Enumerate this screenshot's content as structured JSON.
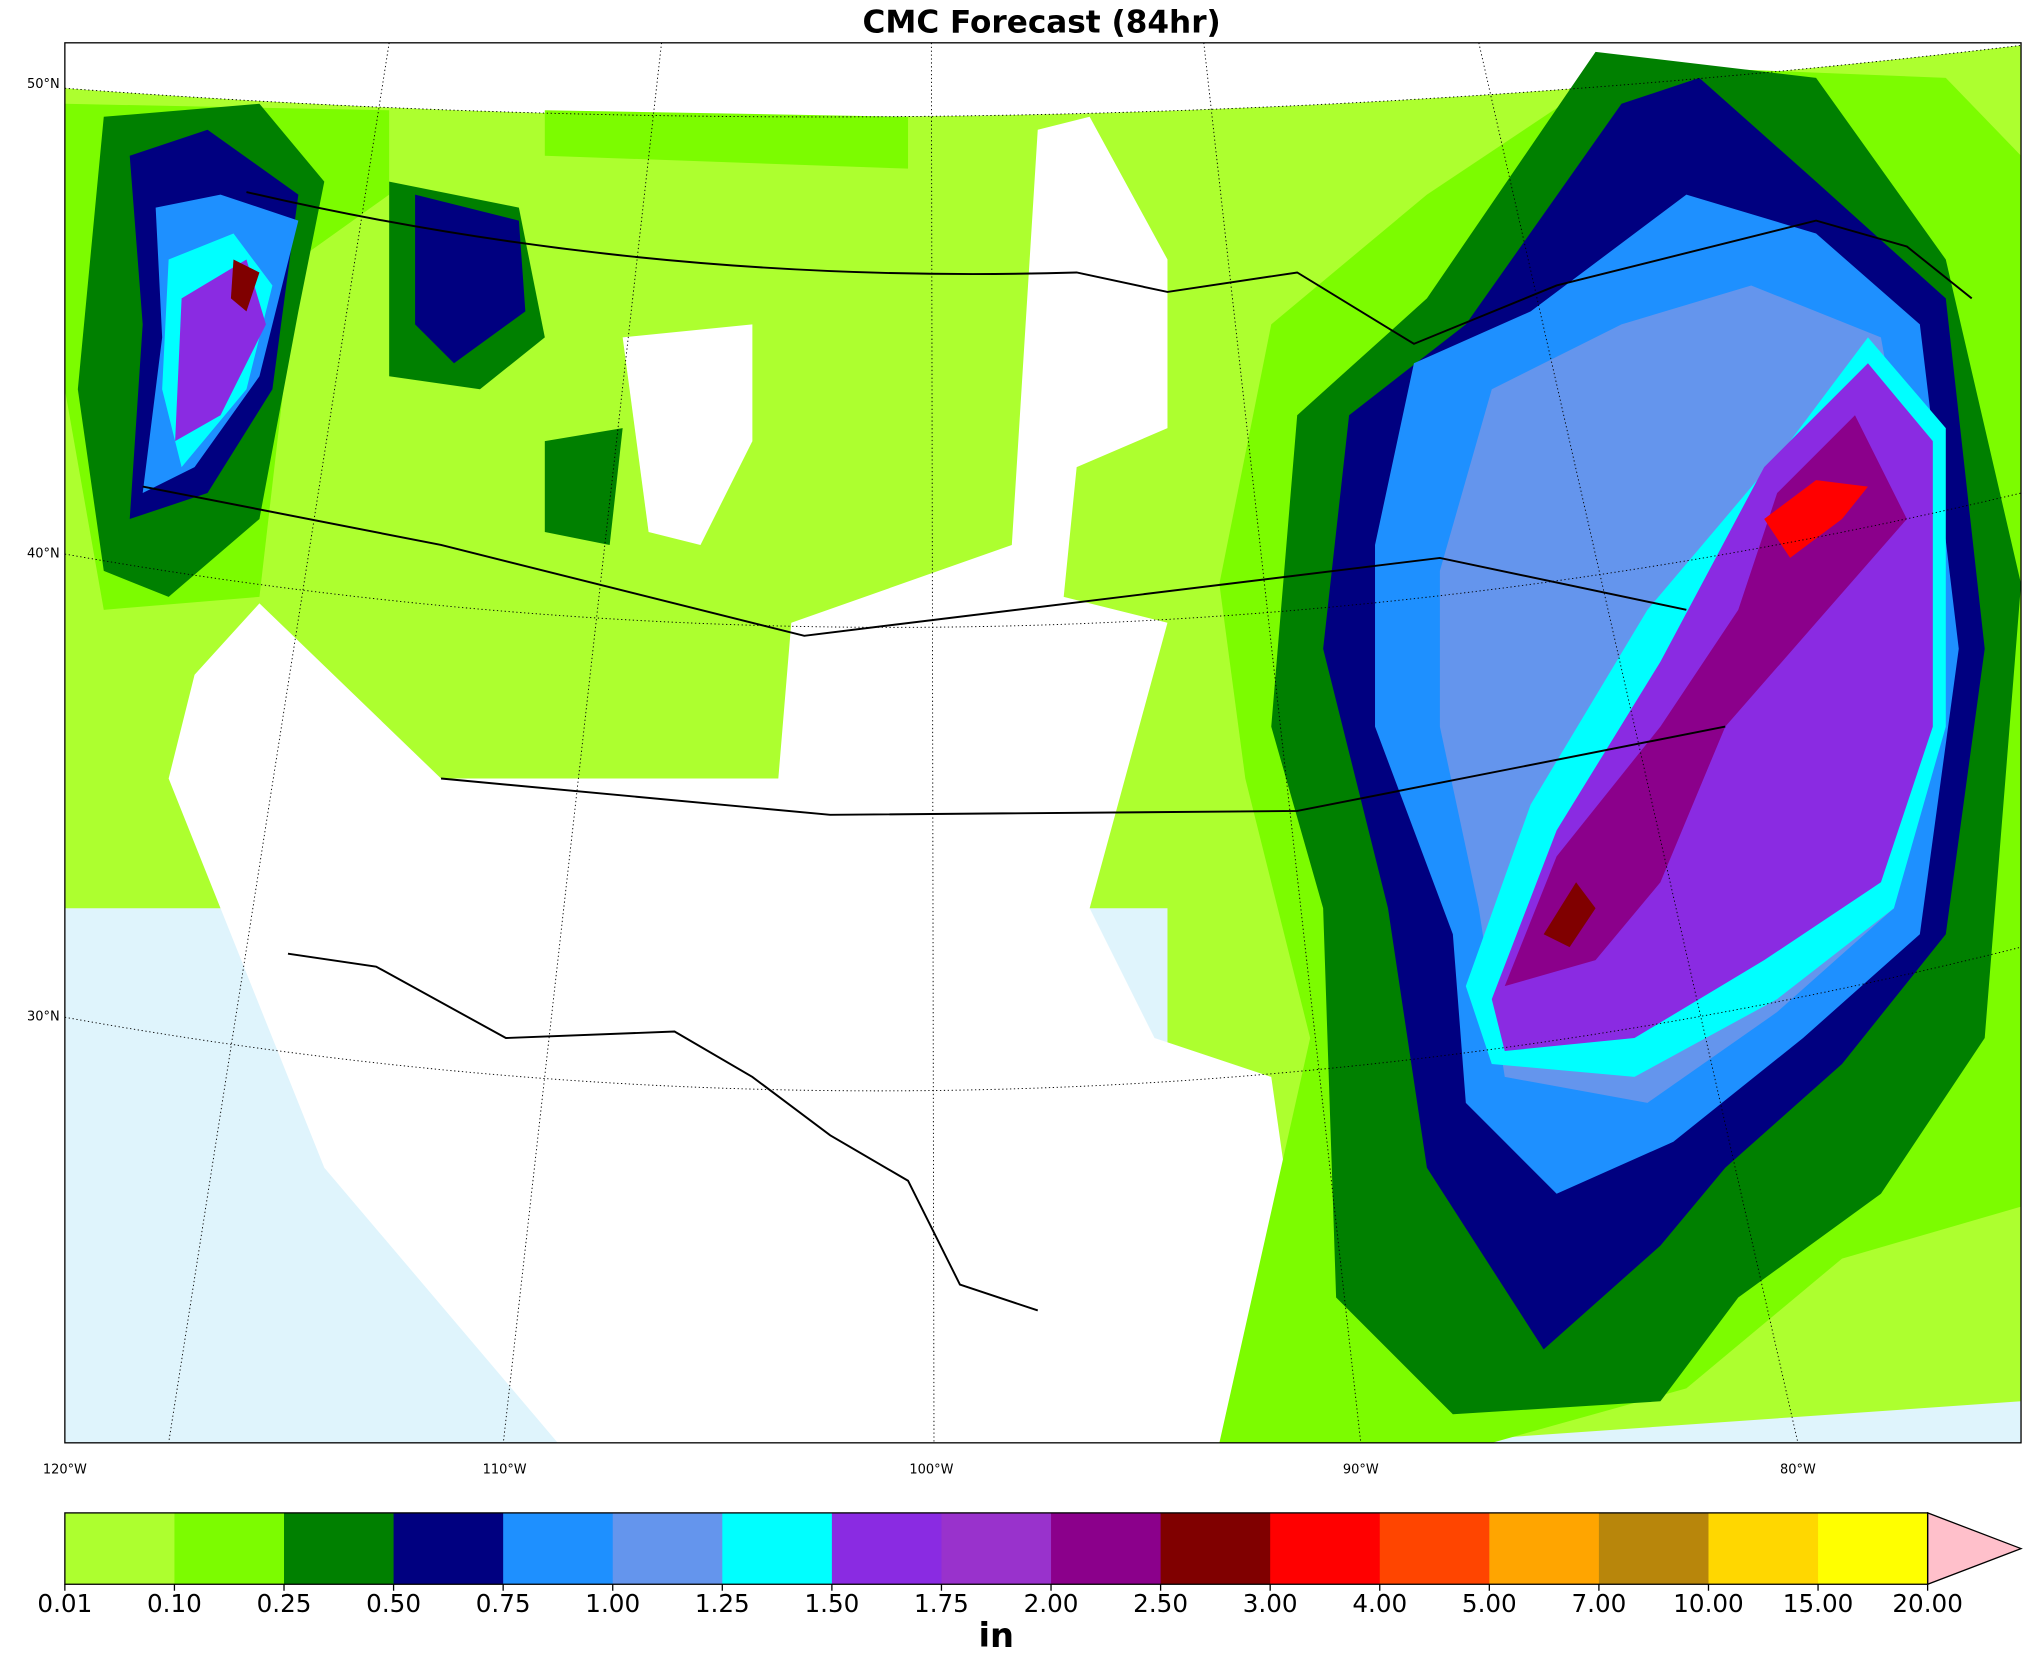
{
  "title": "CMC Forecast (84hr)",
  "map": {
    "lat_labels": [
      "50°N",
      "40°N",
      "30°N"
    ],
    "lon_labels": [
      "120°W",
      "110°W",
      "100°W",
      "90°W",
      "80°W"
    ]
  },
  "colorbar": {
    "label": "in",
    "ticks": [
      {
        "value": 0.01,
        "label": "0.01"
      },
      {
        "value": 0.1,
        "label": "0.10"
      },
      {
        "value": 0.25,
        "label": "0.25"
      },
      {
        "value": 0.5,
        "label": "0.50"
      },
      {
        "value": 0.75,
        "label": "0.75"
      },
      {
        "value": 1,
        "label": "1.00"
      },
      {
        "value": 1.25,
        "label": "1.25"
      },
      {
        "value": 1.5,
        "label": "1.50"
      },
      {
        "value": 1.75,
        "label": "1.75"
      },
      {
        "value": 2,
        "label": "2.00"
      },
      {
        "value": 2.5,
        "label": "2.50"
      },
      {
        "value": 3,
        "label": "3.00"
      },
      {
        "value": 4,
        "label": "4.00"
      },
      {
        "value": 5,
        "label": "5.00"
      },
      {
        "value": 7,
        "label": "7.00"
      },
      {
        "value": 10,
        "label": "10.00"
      },
      {
        "value": 15,
        "label": "15.00"
      },
      {
        "value": 20,
        "label": "20.00"
      }
    ],
    "colors": [
      "#adff2f",
      "#7cfc00",
      "#008000",
      "#000080",
      "#1e90ff",
      "#6495ed",
      "#00ffff",
      "#8a2be2",
      "#9932cc",
      "#8b008b",
      "#800000",
      "#ff0000",
      "#ff4500",
      "#ffa500",
      "#b8860b",
      "#ffd700",
      "#ffff00"
    ],
    "extend_color": "#ffc0cb"
  }
}
